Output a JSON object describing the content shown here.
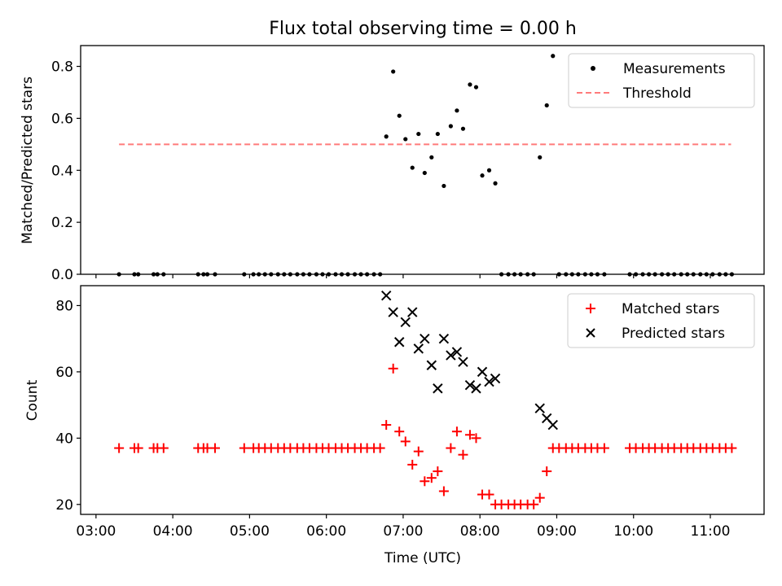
{
  "figure": {
    "title": "Flux total observing time = 0.00 h",
    "xlabel": "Time (UTC)"
  },
  "chart_data": [
    {
      "type": "scatter",
      "ylabel": "Matched/Predicted stars",
      "ylim": [
        0,
        0.88
      ],
      "yticks": [
        0.0,
        0.2,
        0.4,
        0.6,
        0.8
      ],
      "ytick_labels": [
        "0.0",
        "0.2",
        "0.4",
        "0.6",
        "0.8"
      ],
      "xlim_hours": [
        2.8,
        11.7
      ],
      "legend_position": "top-right",
      "threshold": {
        "name": "Threshold",
        "value": 0.5,
        "x_range_hours": [
          3.3,
          11.27
        ],
        "color": "#ff7b7b"
      },
      "series": [
        {
          "name": "Measurements",
          "marker": "dot",
          "color": "#000000",
          "x_hours": [
            3.3,
            3.5,
            3.55,
            3.75,
            3.8,
            3.88,
            4.33,
            4.4,
            4.45,
            4.55,
            4.93,
            5.05,
            5.12,
            5.2,
            5.28,
            5.37,
            5.45,
            5.53,
            5.62,
            5.7,
            5.78,
            5.87,
            5.95,
            6.03,
            6.12,
            6.2,
            6.28,
            6.37,
            6.45,
            6.53,
            6.62,
            6.7,
            6.78,
            6.87,
            6.95,
            7.03,
            7.12,
            7.2,
            7.28,
            7.37,
            7.45,
            7.53,
            7.62,
            7.7,
            7.78,
            7.87,
            7.95,
            8.03,
            8.12,
            8.2,
            8.28,
            8.37,
            8.45,
            8.53,
            8.62,
            8.7,
            8.78,
            8.87,
            8.95,
            9.03,
            9.12,
            9.2,
            9.28,
            9.37,
            9.45,
            9.53,
            9.62,
            9.95,
            10.03,
            10.12,
            10.2,
            10.28,
            10.37,
            10.45,
            10.53,
            10.62,
            10.7,
            10.78,
            10.87,
            10.95,
            11.03,
            11.12,
            11.2,
            11.28
          ],
          "y": [
            0,
            0,
            0,
            0,
            0,
            0,
            0,
            0,
            0,
            0,
            0,
            0,
            0,
            0,
            0,
            0,
            0,
            0,
            0,
            0,
            0,
            0,
            0,
            0,
            0,
            0,
            0,
            0,
            0,
            0,
            0,
            0,
            0.53,
            0.78,
            0.61,
            0.52,
            0.41,
            0.54,
            0.39,
            0.45,
            0.54,
            0.34,
            0.57,
            0.63,
            0.56,
            0.73,
            0.72,
            0.38,
            0.4,
            0.35,
            0,
            0,
            0,
            0,
            0,
            0,
            0.45,
            0.65,
            0.84,
            0,
            0,
            0,
            0,
            0,
            0,
            0,
            0,
            0,
            0,
            0,
            0,
            0,
            0,
            0,
            0,
            0,
            0,
            0,
            0,
            0,
            0,
            0,
            0,
            0
          ]
        }
      ]
    },
    {
      "type": "scatter",
      "ylabel": "Count",
      "ylim": [
        17,
        86
      ],
      "yticks": [
        20,
        40,
        60,
        80
      ],
      "ytick_labels": [
        "20",
        "40",
        "60",
        "80"
      ],
      "xlim_hours": [
        2.8,
        11.7
      ],
      "xticks_hours": [
        3,
        4,
        5,
        6,
        7,
        8,
        9,
        10,
        11
      ],
      "xtick_labels": [
        "03:00",
        "04:00",
        "05:00",
        "06:00",
        "07:00",
        "08:00",
        "09:00",
        "10:00",
        "11:00"
      ],
      "legend_position": "top-right",
      "series": [
        {
          "name": "Matched stars",
          "marker": "plus",
          "color": "#ff0000",
          "x_hours": [
            3.3,
            3.5,
            3.55,
            3.75,
            3.8,
            3.88,
            4.33,
            4.4,
            4.45,
            4.55,
            4.93,
            5.05,
            5.12,
            5.2,
            5.28,
            5.37,
            5.45,
            5.53,
            5.62,
            5.7,
            5.78,
            5.87,
            5.95,
            6.03,
            6.12,
            6.2,
            6.28,
            6.37,
            6.45,
            6.53,
            6.62,
            6.7,
            6.78,
            6.87,
            6.95,
            7.03,
            7.12,
            7.2,
            7.28,
            7.37,
            7.45,
            7.53,
            7.62,
            7.7,
            7.78,
            7.87,
            7.95,
            8.03,
            8.12,
            8.2,
            8.28,
            8.37,
            8.45,
            8.53,
            8.62,
            8.7,
            8.78,
            8.87,
            8.95,
            9.03,
            9.12,
            9.2,
            9.28,
            9.37,
            9.45,
            9.53,
            9.62,
            9.95,
            10.03,
            10.12,
            10.2,
            10.28,
            10.37,
            10.45,
            10.53,
            10.62,
            10.7,
            10.78,
            10.87,
            10.95,
            11.03,
            11.12,
            11.2,
            11.28
          ],
          "y": [
            37,
            37,
            37,
            37,
            37,
            37,
            37,
            37,
            37,
            37,
            37,
            37,
            37,
            37,
            37,
            37,
            37,
            37,
            37,
            37,
            37,
            37,
            37,
            37,
            37,
            37,
            37,
            37,
            37,
            37,
            37,
            37,
            44,
            61,
            42,
            39,
            32,
            36,
            27,
            28,
            30,
            24,
            37,
            42,
            35,
            41,
            40,
            23,
            23,
            20,
            20,
            20,
            20,
            20,
            20,
            20,
            22,
            30,
            37,
            37,
            37,
            37,
            37,
            37,
            37,
            37,
            37,
            37,
            37,
            37,
            37,
            37,
            37,
            37,
            37,
            37,
            37,
            37,
            37,
            37,
            37,
            37,
            37,
            37
          ]
        },
        {
          "name": "Predicted stars",
          "marker": "x",
          "color": "#000000",
          "x_hours": [
            6.78,
            6.87,
            6.95,
            7.03,
            7.12,
            7.2,
            7.28,
            7.37,
            7.45,
            7.53,
            7.62,
            7.7,
            7.78,
            7.87,
            7.95,
            8.03,
            8.12,
            8.2,
            8.78,
            8.87,
            8.95
          ],
          "y": [
            83,
            78,
            69,
            75,
            78,
            67,
            70,
            62,
            55,
            70,
            65,
            66,
            63,
            56,
            55,
            60,
            57,
            58,
            49,
            46,
            44
          ]
        }
      ]
    }
  ]
}
